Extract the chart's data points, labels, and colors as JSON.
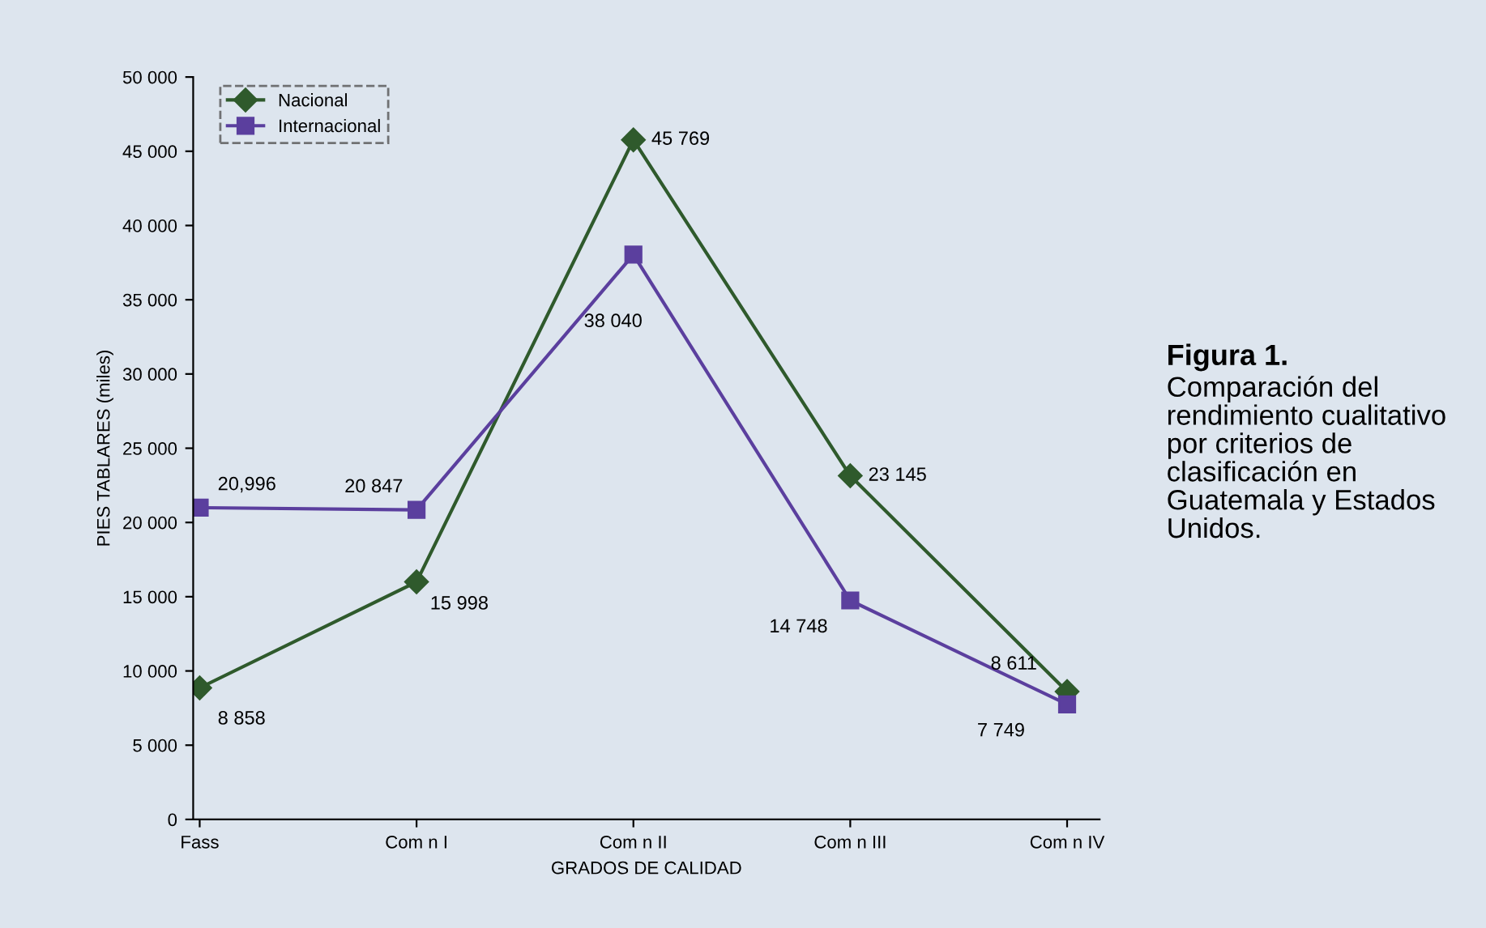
{
  "chart_data": {
    "type": "line",
    "title": "Figura 1.",
    "subtitle": "Comparación del rendimiento cualitativo por criterios de clasificación en Guatemala y Estados Unidos.",
    "xlabel": "GRADOS DE CALIDAD",
    "ylabel": "PIES TABLARES (miles)",
    "categories": [
      "Fass",
      "Com n I",
      "Com n II",
      "Com n III",
      "Com n IV"
    ],
    "series": [
      {
        "name": "Nacional",
        "color": "#2f5a2c",
        "marker": "diamond",
        "values": [
          8858,
          15998,
          45769,
          23145,
          8611
        ],
        "value_labels": [
          "8 858",
          "15 998",
          "45 769",
          "23 145",
          "8 611"
        ]
      },
      {
        "name": "Internacional",
        "color": "#5b3f9e",
        "marker": "square",
        "values": [
          20996,
          20847,
          38040,
          14748,
          7749
        ],
        "value_labels": [
          "20,996",
          "20 847",
          "38 040",
          "14 748",
          "7 749"
        ]
      }
    ],
    "ylim": [
      0,
      50000
    ],
    "yticks": [
      {
        "value": 0,
        "label": "0"
      },
      {
        "value": 5000,
        "label": "5 000"
      },
      {
        "value": 10000,
        "label": "10 000"
      },
      {
        "value": 15000,
        "label": "15 000"
      },
      {
        "value": 20000,
        "label": "20 000"
      },
      {
        "value": 25000,
        "label": "25 000"
      },
      {
        "value": 30000,
        "label": "30 000"
      },
      {
        "value": 35000,
        "label": "35 000"
      },
      {
        "value": 40000,
        "label": "40 000"
      },
      {
        "value": 45000,
        "label": "45 000"
      },
      {
        "value": 50000,
        "label": "50 000"
      }
    ],
    "grid": false,
    "legend": "top left",
    "line_style": "solid"
  }
}
